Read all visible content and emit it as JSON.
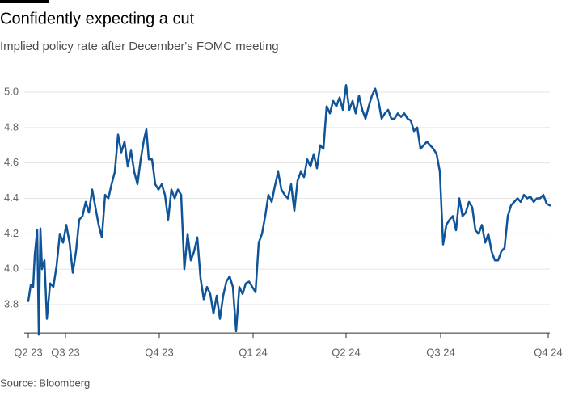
{
  "chart_data": {
    "type": "line",
    "title": "Confidently expecting a cut",
    "subtitle": "Implied policy rate after December's FOMC meeting",
    "source": "Source: Bloomberg",
    "color": "#0f5499",
    "grid": true,
    "xlim": [
      0,
      645
    ],
    "xticks": [
      {
        "value": 0,
        "label": "Q2 23"
      },
      {
        "value": 46,
        "label": "Q3 23"
      },
      {
        "value": 162,
        "label": "Q4 23"
      },
      {
        "value": 278,
        "label": "Q1 24"
      },
      {
        "value": 393,
        "label": "Q2 24"
      },
      {
        "value": 510,
        "label": "Q3 24"
      },
      {
        "value": 643,
        "label": "Q4 24"
      }
    ],
    "ylim": [
      3.64,
      5.06
    ],
    "yticks": [
      3.8,
      {
        "value": 4,
        "label": "4.0"
      },
      4.2,
      4.4,
      4.6,
      4.8,
      {
        "value": 5,
        "label": "5.0"
      }
    ],
    "x": [
      0,
      3,
      6,
      8,
      11,
      13,
      15,
      17,
      20,
      23,
      27,
      31,
      35,
      39,
      43,
      47,
      51,
      55,
      59,
      63,
      67,
      71,
      75,
      79,
      83,
      87,
      91,
      95,
      99,
      103,
      107,
      111,
      115,
      119,
      123,
      127,
      131,
      135,
      139,
      143,
      146,
      149,
      153,
      157,
      161,
      165,
      169,
      173,
      177,
      181,
      185,
      189,
      193,
      197,
      201,
      205,
      209,
      213,
      217,
      221,
      225,
      229,
      233,
      237,
      241,
      245,
      249,
      253,
      257,
      261,
      265,
      269,
      273,
      277,
      281,
      285,
      289,
      293,
      297,
      301,
      305,
      309,
      313,
      317,
      321,
      325,
      329,
      333,
      337,
      341,
      345,
      349,
      353,
      357,
      361,
      365,
      369,
      373,
      377,
      381,
      385,
      389,
      393,
      397,
      401,
      405,
      409,
      413,
      417,
      421,
      425,
      429,
      433,
      437,
      441,
      445,
      449,
      453,
      457,
      461,
      465,
      469,
      473,
      477,
      481,
      485,
      489,
      493,
      497,
      501,
      505,
      509,
      513,
      517,
      521,
      525,
      529,
      533,
      537,
      541,
      545,
      549,
      553,
      557,
      561,
      565,
      569,
      573,
      577,
      581,
      585,
      589,
      593,
      597,
      601,
      605,
      609,
      613,
      617,
      621,
      625,
      629,
      633,
      637,
      641,
      645
    ],
    "values": [
      3.82,
      3.91,
      3.9,
      4.08,
      4.22,
      3.63,
      4.23,
      4.0,
      4.05,
      3.72,
      3.92,
      3.9,
      4.02,
      4.2,
      4.15,
      4.25,
      4.15,
      3.98,
      4.1,
      4.28,
      4.3,
      4.38,
      4.32,
      4.45,
      4.35,
      4.25,
      4.18,
      4.42,
      4.4,
      4.48,
      4.55,
      4.76,
      4.66,
      4.72,
      4.58,
      4.67,
      4.55,
      4.48,
      4.62,
      4.73,
      4.79,
      4.62,
      4.62,
      4.48,
      4.45,
      4.48,
      4.42,
      4.28,
      4.45,
      4.4,
      4.45,
      4.42,
      4.0,
      4.2,
      4.05,
      4.1,
      4.18,
      3.95,
      3.83,
      3.9,
      3.86,
      3.75,
      3.85,
      3.72,
      3.85,
      3.93,
      3.96,
      3.9,
      3.65,
      3.9,
      3.86,
      3.92,
      3.93,
      3.9,
      3.87,
      4.15,
      4.2,
      4.3,
      4.42,
      4.38,
      4.47,
      4.55,
      4.45,
      4.42,
      4.4,
      4.48,
      4.33,
      4.5,
      4.55,
      4.52,
      4.62,
      4.58,
      4.65,
      4.57,
      4.7,
      4.68,
      4.92,
      4.88,
      4.95,
      4.92,
      4.97,
      4.9,
      5.04,
      4.9,
      4.95,
      4.88,
      4.98,
      4.9,
      4.85,
      4.92,
      4.98,
      5.02,
      4.95,
      4.85,
      4.88,
      4.9,
      4.85,
      4.85,
      4.88,
      4.86,
      4.88,
      4.85,
      4.84,
      4.78,
      4.8,
      4.68,
      4.7,
      4.72,
      4.7,
      4.68,
      4.65,
      4.55,
      4.14,
      4.25,
      4.28,
      4.3,
      4.22,
      4.4,
      4.3,
      4.32,
      4.38,
      4.35,
      4.22,
      4.2,
      4.25,
      4.15,
      4.2,
      4.1,
      4.05,
      4.05,
      4.1,
      4.12,
      4.3,
      4.36,
      4.38,
      4.4,
      4.38,
      4.42,
      4.4,
      4.41,
      4.38,
      4.4,
      4.4,
      4.42,
      4.37,
      4.36
    ]
  }
}
